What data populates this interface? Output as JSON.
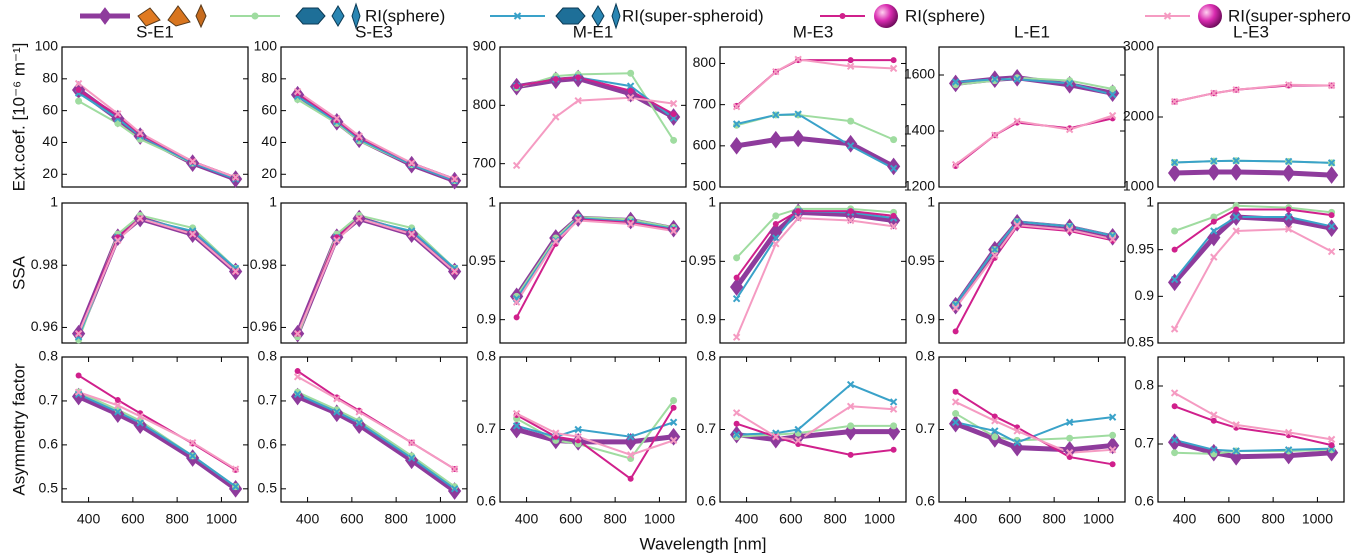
{
  "legend": [
    {
      "color": "#8e3b9c"
    },
    {
      "name": "RI(sphere)",
      "color": "#9fdca0"
    },
    {
      "name": "RI(super-spheroid)",
      "color": "#3aa2c9"
    },
    {
      "name": "RI(sphere)",
      "color": "#d0208c"
    },
    {
      "name": "RI(super-spheroid)",
      "color": "#f59bc2"
    }
  ],
  "xlabel": "Wavelength [nm]",
  "chart_data": [
    {
      "type": "line",
      "title": "S-E1",
      "ylabel": "Ext.coef. [10⁻⁶ m⁻¹]",
      "x": [
        355,
        532,
        633,
        870,
        1064
      ],
      "xlim": [
        280,
        1120
      ],
      "ylim": [
        12,
        100
      ],
      "yticks": [
        20,
        40,
        60,
        80,
        100
      ],
      "series": [
        {
          "values": [
            73,
            55,
            44,
            27,
            17
          ]
        },
        {
          "values": [
            66,
            52,
            42,
            27,
            18
          ]
        },
        {
          "values": [
            71,
            55,
            44,
            27,
            17
          ]
        },
        {
          "values": [
            73,
            57,
            45,
            28,
            18
          ]
        },
        {
          "values": [
            77,
            58,
            46,
            28,
            18
          ]
        }
      ]
    },
    {
      "type": "line",
      "title": "S-E3",
      "x": [
        355,
        532,
        633,
        870,
        1064
      ],
      "xlim": [
        280,
        1120
      ],
      "ylim": [
        12,
        100
      ],
      "yticks": [
        20,
        40,
        60,
        80,
        100
      ],
      "series": [
        {
          "values": [
            70,
            53,
            42,
            26,
            16
          ]
        },
        {
          "values": [
            67,
            52,
            41,
            26,
            16
          ]
        },
        {
          "values": [
            69,
            53,
            42,
            26,
            16
          ]
        },
        {
          "values": [
            71,
            54,
            43,
            27,
            17
          ]
        },
        {
          "values": [
            72,
            55,
            44,
            27,
            17
          ]
        }
      ]
    },
    {
      "type": "line",
      "title": "M-E1",
      "x": [
        355,
        532,
        633,
        870,
        1064
      ],
      "xlim": [
        280,
        1120
      ],
      "ylim": [
        660,
        900
      ],
      "yticks": [
        700,
        800,
        900
      ],
      "series": [
        {
          "values": [
            832,
            843,
            846,
            820,
            780
          ]
        },
        {
          "values": [
            830,
            850,
            853,
            855,
            740
          ]
        },
        {
          "values": [
            833,
            845,
            848,
            833,
            778
          ]
        },
        {
          "values": [
            833,
            845,
            848,
            825,
            785
          ]
        },
        {
          "values": [
            697,
            780,
            808,
            813,
            803
          ]
        }
      ]
    },
    {
      "type": "line",
      "title": "M-E3",
      "x": [
        355,
        532,
        633,
        870,
        1064
      ],
      "xlim": [
        280,
        1120
      ],
      "ylim": [
        500,
        840
      ],
      "yticks": [
        500,
        600,
        700,
        800
      ],
      "series": [
        {
          "values": [
            600,
            615,
            618,
            605,
            550
          ]
        },
        {
          "values": [
            650,
            675,
            675,
            660,
            615
          ]
        },
        {
          "values": [
            653,
            675,
            677,
            600,
            545
          ]
        },
        {
          "values": [
            697,
            780,
            808,
            808,
            808
          ]
        },
        {
          "values": [
            695,
            780,
            810,
            793,
            788
          ]
        }
      ]
    },
    {
      "type": "line",
      "title": "L-E1",
      "x": [
        355,
        532,
        633,
        870,
        1064
      ],
      "xlim": [
        280,
        1120
      ],
      "ylim": [
        1200,
        1700
      ],
      "yticks": [
        1200,
        1400,
        1600
      ],
      "series": [
        {
          "values": [
            1570,
            1585,
            1590,
            1565,
            1535
          ]
        },
        {
          "values": [
            1565,
            1580,
            1590,
            1580,
            1550
          ]
        },
        {
          "values": [
            1575,
            1585,
            1585,
            1570,
            1530
          ]
        },
        {
          "values": [
            1275,
            1385,
            1430,
            1410,
            1445
          ]
        },
        {
          "values": [
            1280,
            1385,
            1435,
            1405,
            1455
          ]
        }
      ]
    },
    {
      "type": "line",
      "title": "L-E3",
      "x": [
        355,
        532,
        633,
        870,
        1064
      ],
      "xlim": [
        280,
        1120
      ],
      "ylim": [
        1000,
        3000
      ],
      "yticks": [
        1000,
        2000,
        3000
      ],
      "series": [
        {
          "values": [
            1200,
            1215,
            1215,
            1200,
            1170
          ]
        },
        {
          "values": [
            1350,
            1370,
            1375,
            1365,
            1345
          ]
        },
        {
          "values": [
            1350,
            1370,
            1375,
            1365,
            1345
          ]
        },
        {
          "values": [
            2220,
            2340,
            2390,
            2450,
            2450
          ]
        },
        {
          "values": [
            2220,
            2340,
            2390,
            2460,
            2450
          ]
        }
      ]
    },
    {
      "type": "line",
      "ylabel": "SSA",
      "x": [
        355,
        532,
        633,
        870,
        1064
      ],
      "xlim": [
        280,
        1120
      ],
      "ylim": [
        0.955,
        1
      ],
      "yticks": [
        0.96,
        0.98,
        1
      ],
      "series": [
        {
          "values": [
            0.958,
            0.989,
            0.995,
            0.99,
            0.978
          ]
        },
        {
          "values": [
            0.956,
            0.99,
            0.996,
            0.992,
            0.979
          ]
        },
        {
          "values": [
            0.957,
            0.989,
            0.995,
            0.991,
            0.979
          ]
        },
        {
          "values": [
            0.958,
            0.989,
            0.995,
            0.99,
            0.978
          ]
        },
        {
          "values": [
            0.958,
            0.988,
            0.995,
            0.99,
            0.978
          ]
        }
      ]
    },
    {
      "type": "line",
      "x": [
        355,
        532,
        633,
        870,
        1064
      ],
      "xlim": [
        280,
        1120
      ],
      "ylim": [
        0.955,
        1
      ],
      "yticks": [
        0.96,
        0.98,
        1
      ],
      "series": [
        {
          "values": [
            0.958,
            0.989,
            0.995,
            0.99,
            0.978
          ]
        },
        {
          "values": [
            0.957,
            0.99,
            0.996,
            0.992,
            0.979
          ]
        },
        {
          "values": [
            0.958,
            0.989,
            0.995,
            0.991,
            0.979
          ]
        },
        {
          "values": [
            0.958,
            0.989,
            0.995,
            0.99,
            0.978
          ]
        },
        {
          "values": [
            0.958,
            0.988,
            0.995,
            0.99,
            0.978
          ]
        }
      ]
    },
    {
      "type": "line",
      "x": [
        355,
        532,
        633,
        870,
        1064
      ],
      "xlim": [
        280,
        1120
      ],
      "ylim": [
        0.88,
        1
      ],
      "yticks": [
        0.9,
        0.95,
        1
      ],
      "series": [
        {
          "values": [
            0.92,
            0.97,
            0.987,
            0.985,
            0.978
          ]
        },
        {
          "values": [
            0.92,
            0.97,
            0.988,
            0.986,
            0.979
          ]
        },
        {
          "values": [
            0.918,
            0.968,
            0.987,
            0.984,
            0.978
          ]
        },
        {
          "values": [
            0.902,
            0.965,
            0.986,
            0.983,
            0.977
          ]
        },
        {
          "values": [
            0.915,
            0.967,
            0.985,
            0.982,
            0.976
          ]
        }
      ]
    },
    {
      "type": "line",
      "x": [
        355,
        532,
        633,
        870,
        1064
      ],
      "xlim": [
        280,
        1120
      ],
      "ylim": [
        0.88,
        1
      ],
      "yticks": [
        0.9,
        0.95,
        1
      ],
      "series": [
        {
          "values": [
            0.928,
            0.975,
            0.992,
            0.99,
            0.985
          ]
        },
        {
          "values": [
            0.953,
            0.989,
            0.995,
            0.995,
            0.992
          ]
        },
        {
          "values": [
            0.918,
            0.97,
            0.993,
            0.992,
            0.987
          ]
        },
        {
          "values": [
            0.936,
            0.982,
            0.993,
            0.993,
            0.989
          ]
        },
        {
          "values": [
            0.885,
            0.965,
            0.987,
            0.985,
            0.98
          ]
        }
      ]
    },
    {
      "type": "line",
      "x": [
        355,
        532,
        633,
        870,
        1064
      ],
      "xlim": [
        280,
        1120
      ],
      "ylim": [
        0.88,
        1
      ],
      "yticks": [
        0.9,
        0.95,
        1
      ],
      "series": [
        {
          "values": [
            0.912,
            0.96,
            0.983,
            0.979,
            0.971
          ]
        },
        {
          "values": [
            0.913,
            0.96,
            0.984,
            0.98,
            0.972
          ]
        },
        {
          "values": [
            0.913,
            0.96,
            0.984,
            0.98,
            0.972
          ]
        },
        {
          "values": [
            0.89,
            0.953,
            0.98,
            0.976,
            0.968
          ]
        },
        {
          "values": [
            0.91,
            0.955,
            0.981,
            0.977,
            0.969
          ]
        }
      ]
    },
    {
      "type": "line",
      "x": [
        355,
        532,
        633,
        870,
        1064
      ],
      "xlim": [
        280,
        1120
      ],
      "ylim": [
        0.85,
        1
      ],
      "yticks": [
        0.85,
        0.9,
        0.95,
        1
      ],
      "series": [
        {
          "values": [
            0.915,
            0.963,
            0.985,
            0.982,
            0.973
          ]
        },
        {
          "values": [
            0.97,
            0.985,
            0.997,
            0.995,
            0.99
          ]
        },
        {
          "values": [
            0.918,
            0.97,
            0.985,
            0.985,
            0.975
          ]
        },
        {
          "values": [
            0.95,
            0.98,
            0.993,
            0.993,
            0.987
          ]
        },
        {
          "values": [
            0.865,
            0.942,
            0.97,
            0.972,
            0.948
          ]
        }
      ]
    },
    {
      "type": "line",
      "ylabel": "Asymmetry factor",
      "x": [
        355,
        532,
        633,
        870,
        1064
      ],
      "xlim": [
        280,
        1120
      ],
      "xticks": [
        400,
        600,
        800,
        1000
      ],
      "ylim": [
        0.47,
        0.8
      ],
      "yticks": [
        0.5,
        0.6,
        0.7,
        0.8
      ],
      "series": [
        {
          "values": [
            0.71,
            0.67,
            0.645,
            0.57,
            0.5
          ]
        },
        {
          "values": [
            0.72,
            0.68,
            0.655,
            0.575,
            0.505
          ]
        },
        {
          "values": [
            0.715,
            0.675,
            0.65,
            0.575,
            0.505
          ]
        },
        {
          "values": [
            0.758,
            0.702,
            0.672,
            0.603,
            0.543
          ]
        },
        {
          "values": [
            0.72,
            0.69,
            0.665,
            0.605,
            0.545
          ]
        }
      ]
    },
    {
      "type": "line",
      "x": [
        355,
        532,
        633,
        870,
        1064
      ],
      "xlim": [
        280,
        1120
      ],
      "xticks": [
        400,
        600,
        800,
        1000
      ],
      "ylim": [
        0.47,
        0.8
      ],
      "yticks": [
        0.5,
        0.6,
        0.7,
        0.8
      ],
      "series": [
        {
          "values": [
            0.71,
            0.672,
            0.645,
            0.565,
            0.495
          ]
        },
        {
          "values": [
            0.72,
            0.68,
            0.655,
            0.575,
            0.505
          ]
        },
        {
          "values": [
            0.715,
            0.675,
            0.65,
            0.57,
            0.5
          ]
        },
        {
          "values": [
            0.768,
            0.708,
            0.678,
            0.605,
            0.545
          ]
        },
        {
          "values": [
            0.755,
            0.705,
            0.675,
            0.605,
            0.545
          ]
        }
      ]
    },
    {
      "type": "line",
      "x": [
        355,
        532,
        633,
        870,
        1064
      ],
      "xlim": [
        280,
        1120
      ],
      "xticks": [
        400,
        600,
        800,
        1000
      ],
      "ylim": [
        0.6,
        0.8
      ],
      "yticks": [
        0.6,
        0.7,
        0.8
      ],
      "series": [
        {
          "values": [
            0.7,
            0.685,
            0.683,
            0.683,
            0.69
          ]
        },
        {
          "values": [
            0.715,
            0.685,
            0.68,
            0.66,
            0.74
          ]
        },
        {
          "values": [
            0.705,
            0.69,
            0.7,
            0.69,
            0.71
          ]
        },
        {
          "values": [
            0.72,
            0.69,
            0.685,
            0.632,
            0.73
          ]
        },
        {
          "values": [
            0.722,
            0.695,
            0.69,
            0.665,
            0.685
          ]
        }
      ]
    },
    {
      "type": "line",
      "x": [
        355,
        532,
        633,
        870,
        1064
      ],
      "xlim": [
        280,
        1120
      ],
      "xticks": [
        400,
        600,
        800,
        1000
      ],
      "ylim": [
        0.6,
        0.8
      ],
      "yticks": [
        0.6,
        0.7,
        0.8
      ],
      "series": [
        {
          "values": [
            0.693,
            0.686,
            0.69,
            0.697,
            0.697
          ]
        },
        {
          "values": [
            0.69,
            0.693,
            0.695,
            0.705,
            0.705
          ]
        },
        {
          "values": [
            0.693,
            0.695,
            0.7,
            0.762,
            0.738
          ]
        },
        {
          "values": [
            0.708,
            0.69,
            0.68,
            0.665,
            0.672
          ]
        },
        {
          "values": [
            0.723,
            0.69,
            0.685,
            0.732,
            0.728
          ]
        }
      ]
    },
    {
      "type": "line",
      "x": [
        355,
        532,
        633,
        870,
        1064
      ],
      "xlim": [
        280,
        1120
      ],
      "xticks": [
        400,
        600,
        800,
        1000
      ],
      "ylim": [
        0.6,
        0.8
      ],
      "yticks": [
        0.6,
        0.7,
        0.8
      ],
      "series": [
        {
          "values": [
            0.708,
            0.687,
            0.675,
            0.672,
            0.678
          ]
        },
        {
          "values": [
            0.722,
            0.69,
            0.685,
            0.688,
            0.692
          ]
        },
        {
          "values": [
            0.71,
            0.698,
            0.682,
            0.71,
            0.717
          ]
        },
        {
          "values": [
            0.752,
            0.718,
            0.703,
            0.662,
            0.652
          ]
        },
        {
          "values": [
            0.738,
            0.712,
            0.698,
            0.668,
            0.672
          ]
        }
      ]
    },
    {
      "type": "line",
      "x": [
        355,
        532,
        633,
        870,
        1064
      ],
      "xlim": [
        280,
        1120
      ],
      "xticks": [
        400,
        600,
        800,
        1000
      ],
      "ylim": [
        0.6,
        0.85
      ],
      "yticks": [
        0.6,
        0.7,
        0.8
      ],
      "series": [
        {
          "values": [
            0.703,
            0.685,
            0.678,
            0.68,
            0.685
          ]
        },
        {
          "values": [
            0.685,
            0.683,
            0.688,
            0.688,
            0.69
          ]
        },
        {
          "values": [
            0.707,
            0.69,
            0.688,
            0.69,
            0.692
          ]
        },
        {
          "values": [
            0.765,
            0.74,
            0.728,
            0.715,
            0.698
          ]
        },
        {
          "values": [
            0.788,
            0.75,
            0.733,
            0.72,
            0.708
          ]
        }
      ]
    }
  ]
}
